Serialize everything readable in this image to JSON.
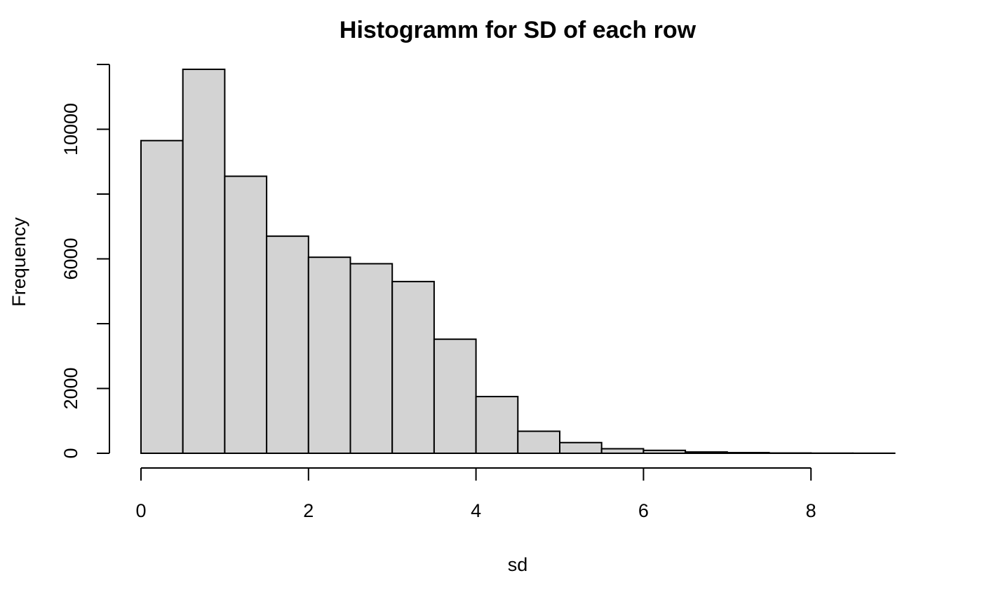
{
  "chart_data": {
    "type": "bar",
    "title": "Histogramm for SD of each row",
    "xlabel": "sd",
    "ylabel": "Frequency",
    "bins": [
      {
        "from": 0.0,
        "to": 0.5,
        "value": 9650
      },
      {
        "from": 0.5,
        "to": 1.0,
        "value": 11850
      },
      {
        "from": 1.0,
        "to": 1.5,
        "value": 8550
      },
      {
        "from": 1.5,
        "to": 2.0,
        "value": 6700
      },
      {
        "from": 2.0,
        "to": 2.5,
        "value": 6050
      },
      {
        "from": 2.5,
        "to": 3.0,
        "value": 5850
      },
      {
        "from": 3.0,
        "to": 3.5,
        "value": 5300
      },
      {
        "from": 3.5,
        "to": 4.0,
        "value": 3520
      },
      {
        "from": 4.0,
        "to": 4.5,
        "value": 1750
      },
      {
        "from": 4.5,
        "to": 5.0,
        "value": 680
      },
      {
        "from": 5.0,
        "to": 5.5,
        "value": 330
      },
      {
        "from": 5.5,
        "to": 6.0,
        "value": 140
      },
      {
        "from": 6.0,
        "to": 6.5,
        "value": 90
      },
      {
        "from": 6.5,
        "to": 7.0,
        "value": 40
      },
      {
        "from": 7.0,
        "to": 7.5,
        "value": 20
      },
      {
        "from": 7.5,
        "to": 8.0,
        "value": 8
      },
      {
        "from": 8.0,
        "to": 8.5,
        "value": 4
      },
      {
        "from": 8.5,
        "to": 9.0,
        "value": 2
      }
    ],
    "xlim": [
      0,
      9
    ],
    "ylim": [
      0,
      12000
    ],
    "x_ticks": [
      0,
      2,
      4,
      6,
      8
    ],
    "x_tick_labels": [
      "0",
      "2",
      "4",
      "6",
      "8"
    ],
    "y_ticks": [
      0,
      2000,
      4000,
      6000,
      8000,
      10000,
      12000
    ],
    "y_tick_labels": [
      "0",
      "2000",
      "",
      "6000",
      "",
      "10000",
      ""
    ],
    "grid": false,
    "bar_color": "#d3d3d3",
    "edge_color": "#000000"
  }
}
